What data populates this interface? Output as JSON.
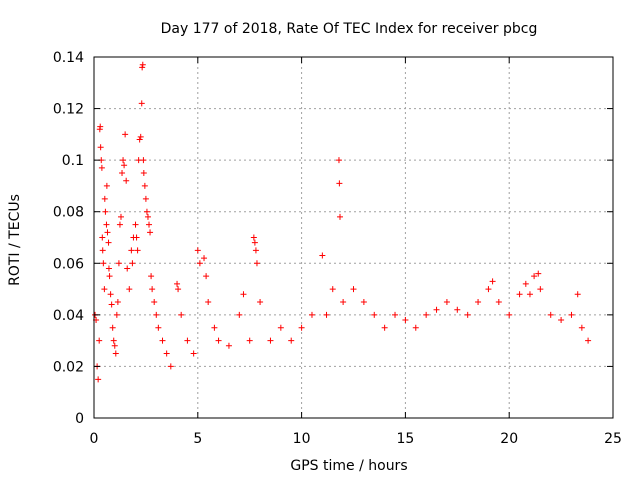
{
  "chart_data": {
    "type": "scatter",
    "title": "Day 177 of 2018, Rate Of TEC Index for receiver pbcg",
    "xlabel": "GPS time / hours",
    "ylabel": "ROTI / TECUs",
    "xlim": [
      0,
      25
    ],
    "ylim": [
      0,
      0.14
    ],
    "xticks": [
      0,
      5,
      10,
      15,
      20,
      25
    ],
    "yticks": [
      0,
      0.02,
      0.04,
      0.06,
      0.08,
      0.1,
      0.12,
      0.14
    ],
    "xtick_labels": [
      "0",
      "5",
      "10",
      "15",
      "20",
      "25"
    ],
    "ytick_labels": [
      "0",
      "0.02",
      "0.04",
      "0.06",
      "0.08",
      "0.1",
      "0.12",
      "0.14"
    ],
    "grid": true,
    "marker": "+",
    "color": "#ff0000",
    "series": [
      {
        "name": "ROTI",
        "points": [
          [
            0.05,
            0.04
          ],
          [
            0.1,
            0.038
          ],
          [
            0.15,
            0.02
          ],
          [
            0.2,
            0.015
          ],
          [
            0.25,
            0.03
          ],
          [
            0.28,
            0.112
          ],
          [
            0.3,
            0.113
          ],
          [
            0.32,
            0.105
          ],
          [
            0.35,
            0.1
          ],
          [
            0.38,
            0.097
          ],
          [
            0.4,
            0.07
          ],
          [
            0.42,
            0.065
          ],
          [
            0.45,
            0.06
          ],
          [
            0.5,
            0.05
          ],
          [
            0.52,
            0.085
          ],
          [
            0.55,
            0.08
          ],
          [
            0.6,
            0.075
          ],
          [
            0.62,
            0.09
          ],
          [
            0.65,
            0.072
          ],
          [
            0.7,
            0.068
          ],
          [
            0.72,
            0.058
          ],
          [
            0.75,
            0.055
          ],
          [
            0.8,
            0.048
          ],
          [
            0.85,
            0.044
          ],
          [
            0.9,
            0.035
          ],
          [
            0.95,
            0.03
          ],
          [
            1.0,
            0.028
          ],
          [
            1.05,
            0.025
          ],
          [
            1.1,
            0.04
          ],
          [
            1.15,
            0.045
          ],
          [
            1.2,
            0.06
          ],
          [
            1.25,
            0.075
          ],
          [
            1.3,
            0.078
          ],
          [
            1.35,
            0.095
          ],
          [
            1.4,
            0.1
          ],
          [
            1.45,
            0.098
          ],
          [
            1.5,
            0.11
          ],
          [
            1.55,
            0.092
          ],
          [
            1.6,
            0.058
          ],
          [
            1.7,
            0.05
          ],
          [
            1.8,
            0.065
          ],
          [
            1.85,
            0.06
          ],
          [
            1.9,
            0.07
          ],
          [
            2.0,
            0.075
          ],
          [
            2.05,
            0.07
          ],
          [
            2.1,
            0.065
          ],
          [
            2.15,
            0.1
          ],
          [
            2.2,
            0.108
          ],
          [
            2.25,
            0.109
          ],
          [
            2.3,
            0.122
          ],
          [
            2.32,
            0.136
          ],
          [
            2.35,
            0.137
          ],
          [
            2.38,
            0.1
          ],
          [
            2.4,
            0.095
          ],
          [
            2.45,
            0.09
          ],
          [
            2.5,
            0.085
          ],
          [
            2.55,
            0.08
          ],
          [
            2.6,
            0.078
          ],
          [
            2.65,
            0.075
          ],
          [
            2.7,
            0.072
          ],
          [
            2.75,
            0.055
          ],
          [
            2.8,
            0.05
          ],
          [
            2.9,
            0.045
          ],
          [
            3.0,
            0.04
          ],
          [
            3.1,
            0.035
          ],
          [
            3.3,
            0.03
          ],
          [
            3.5,
            0.025
          ],
          [
            3.7,
            0.02
          ],
          [
            4.0,
            0.052
          ],
          [
            4.05,
            0.05
          ],
          [
            4.2,
            0.04
          ],
          [
            4.5,
            0.03
          ],
          [
            4.8,
            0.025
          ],
          [
            5.0,
            0.065
          ],
          [
            5.1,
            0.06
          ],
          [
            5.3,
            0.062
          ],
          [
            5.4,
            0.055
          ],
          [
            5.5,
            0.045
          ],
          [
            5.8,
            0.035
          ],
          [
            6.0,
            0.03
          ],
          [
            6.5,
            0.028
          ],
          [
            7.0,
            0.04
          ],
          [
            7.2,
            0.048
          ],
          [
            7.5,
            0.03
          ],
          [
            7.7,
            0.07
          ],
          [
            7.75,
            0.068
          ],
          [
            7.8,
            0.065
          ],
          [
            7.85,
            0.06
          ],
          [
            8.0,
            0.045
          ],
          [
            8.5,
            0.03
          ],
          [
            9.0,
            0.035
          ],
          [
            9.5,
            0.03
          ],
          [
            10.0,
            0.035
          ],
          [
            10.5,
            0.04
          ],
          [
            11.0,
            0.063
          ],
          [
            11.2,
            0.04
          ],
          [
            11.5,
            0.05
          ],
          [
            11.8,
            0.1
          ],
          [
            11.82,
            0.091
          ],
          [
            11.85,
            0.078
          ],
          [
            12.0,
            0.045
          ],
          [
            12.5,
            0.05
          ],
          [
            13.0,
            0.045
          ],
          [
            13.5,
            0.04
          ],
          [
            14.0,
            0.035
          ],
          [
            14.5,
            0.04
          ],
          [
            15.0,
            0.038
          ],
          [
            15.5,
            0.035
          ],
          [
            16.0,
            0.04
          ],
          [
            16.5,
            0.042
          ],
          [
            17.0,
            0.045
          ],
          [
            17.5,
            0.042
          ],
          [
            18.0,
            0.04
          ],
          [
            18.5,
            0.045
          ],
          [
            19.0,
            0.05
          ],
          [
            19.2,
            0.053
          ],
          [
            19.5,
            0.045
          ],
          [
            20.0,
            0.04
          ],
          [
            20.5,
            0.048
          ],
          [
            20.8,
            0.052
          ],
          [
            21.0,
            0.048
          ],
          [
            21.2,
            0.055
          ],
          [
            21.4,
            0.056
          ],
          [
            21.5,
            0.05
          ],
          [
            22.0,
            0.04
          ],
          [
            22.5,
            0.038
          ],
          [
            23.0,
            0.04
          ],
          [
            23.3,
            0.048
          ],
          [
            23.5,
            0.035
          ],
          [
            23.8,
            0.03
          ]
        ]
      }
    ]
  }
}
